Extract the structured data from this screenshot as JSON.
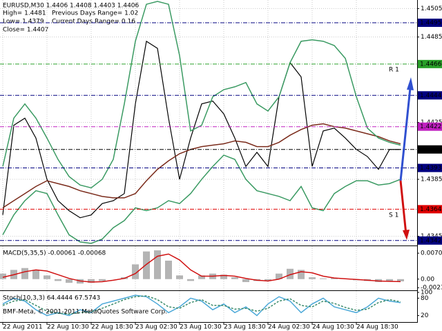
{
  "chart_data": [
    {
      "type": "line",
      "title": "EURUSD,M30  1.4406 1.4408 1.4403 1.4406",
      "annotations": [
        "High= 1.4481",
        "Previous Days Range= 1.02",
        "Low= 1.4379",
        "Current Days Range= 0.16",
        "Close= 1.4407",
        "R 1",
        "S 1"
      ],
      "categories": [
        "22 Aug 2011",
        null,
        null,
        null,
        "22 Aug 10:30",
        null,
        null,
        null,
        "22 Aug 18:30",
        null,
        null,
        null,
        "23 Aug 02:30",
        null,
        null,
        null,
        "23 Aug 10:30",
        null,
        null,
        null,
        "23 Aug 18:30",
        null,
        null,
        null,
        "24 Aug 02:30",
        null,
        null,
        null,
        "24 Aug 10:30",
        null,
        null,
        null,
        "24 Aug 18:30",
        null,
        null,
        null,
        null
      ],
      "ylim": [
        1.4339,
        1.4511
      ],
      "yticks": [
        1.4505,
        1.4485,
        1.4425,
        1.4385,
        1.4345
      ],
      "grid": true,
      "series": [
        {
          "color": "#000000",
          "values": [
            1.436,
            1.4423,
            1.4428,
            1.4414,
            1.4385,
            1.437,
            1.4363,
            1.4358,
            1.436,
            1.4368,
            1.437,
            1.4375,
            1.4438,
            1.4482,
            1.4477,
            1.4428,
            1.4385,
            1.4414,
            1.4438,
            1.444,
            1.4431,
            1.4414,
            1.4394,
            1.4404,
            1.4394,
            1.4443,
            1.4467,
            1.4457,
            1.4394,
            1.4419,
            1.4421,
            1.4414,
            1.4406,
            1.4401,
            1.4392,
            1.4406,
            1.4406
          ]
        },
        {
          "color": "#7a2a1a",
          "values": [
            1.4365,
            1.437,
            1.4375,
            1.438,
            1.4384,
            1.4382,
            1.438,
            1.4377,
            1.4375,
            1.4373,
            1.4372,
            1.4372,
            1.4375,
            1.4384,
            1.4392,
            1.4398,
            1.4403,
            1.4406,
            1.4408,
            1.4409,
            1.441,
            1.4412,
            1.4411,
            1.4408,
            1.4408,
            1.4411,
            1.4416,
            1.442,
            1.4423,
            1.4424,
            1.4422,
            1.4421,
            1.4419,
            1.4417,
            1.4415,
            1.4412,
            1.441
          ]
        },
        {
          "color": "#3a9a62",
          "values": [
            1.4394,
            1.4428,
            1.4438,
            1.4428,
            1.4414,
            1.4399,
            1.4387,
            1.4381,
            1.4379,
            1.4385,
            1.4399,
            1.4438,
            1.4482,
            1.4508,
            1.451,
            1.4508,
            1.4472,
            1.4419,
            1.4423,
            1.4443,
            1.4448,
            1.445,
            1.4453,
            1.4438,
            1.4433,
            1.4443,
            1.4467,
            1.4482,
            1.4483,
            1.4482,
            1.4479,
            1.447,
            1.4443,
            1.4421,
            1.4414,
            1.4411,
            1.4409
          ]
        },
        {
          "color": "#3a9a62",
          "values": [
            1.4346,
            1.436,
            1.437,
            1.4377,
            1.4375,
            1.436,
            1.4346,
            1.4341,
            1.434,
            1.4343,
            1.4351,
            1.4356,
            1.4365,
            1.4363,
            1.4365,
            1.437,
            1.4368,
            1.4375,
            1.4385,
            1.4394,
            1.4402,
            1.4399,
            1.4385,
            1.4377,
            1.4375,
            1.4373,
            1.437,
            1.438,
            1.4365,
            1.4363,
            1.4375,
            1.438,
            1.4384,
            1.4384,
            1.4381,
            1.4382,
            1.4385
          ]
        }
      ],
      "levels": [
        {
          "value": 1.4495,
          "color": "#000080"
        },
        {
          "value": 1.4466,
          "color": "#2aa02a"
        },
        {
          "value": 1.4444,
          "color": "#000080"
        },
        {
          "value": 1.4422,
          "color": "#c020c0"
        },
        {
          "value": 1.4406,
          "color": "#000000"
        },
        {
          "value": 1.4393,
          "color": "#000080"
        },
        {
          "value": 1.4364,
          "color": "#e00000"
        },
        {
          "value": 1.4342,
          "color": "#000080"
        }
      ]
    },
    {
      "type": "bar",
      "title": "MACD(5,35,5) -0.00061 -0.00068",
      "ylim": [
        -0.00266,
        0.00874
      ],
      "yticks": [
        0.00703,
        {
          "value": 0,
          "label": "0.00"
        },
        -0.00233
      ],
      "series": [
        {
          "style": "histogram",
          "color": "#b4b4b4",
          "values": [
            0.0015,
            0.0025,
            0.003,
            0.0025,
            0.001,
            -0.0005,
            -0.001,
            -0.0012,
            -0.001,
            -0.0005,
            0,
            0.0005,
            0.004,
            0.0075,
            0.0078,
            0.005,
            0.001,
            -0.0005,
            0.001,
            0.0015,
            0.0012,
            0.0005,
            -0.0008,
            -0.0005,
            -0.0005,
            0.0015,
            0.0028,
            0.0025,
            0.0005,
            0.0002,
            0.0003,
            0,
            -0.0003,
            -0.0005,
            -0.0008,
            -0.0006,
            -0.00061
          ]
        },
        {
          "style": "line",
          "color": "#d01010",
          "values": [
            0.0005,
            0.0012,
            0.002,
            0.0025,
            0.0022,
            0.0012,
            0.0002,
            -0.0005,
            -0.0008,
            -0.0007,
            -0.0003,
            0.0002,
            0.0015,
            0.004,
            0.0062,
            0.0068,
            0.0052,
            0.0025,
            0.0008,
            0.0008,
            0.001,
            0.0008,
            0.0002,
            -0.0003,
            -0.0005,
            0,
            0.0012,
            0.002,
            0.0017,
            0.0008,
            0.0003,
            0.0001,
            -0.0001,
            -0.0003,
            -0.0005,
            -0.0006,
            -0.00068
          ]
        }
      ]
    },
    {
      "type": "line",
      "title": "Stoch(10,3,3) 64.4444 67.5743",
      "ylim": [
        0,
        100
      ],
      "yticks": [
        100,
        80,
        20
      ],
      "series": [
        {
          "color": "#4aa8d8",
          "values": [
            60,
            80,
            70,
            40,
            20,
            30,
            20,
            40,
            30,
            60,
            70,
            80,
            90,
            85,
            60,
            30,
            50,
            80,
            70,
            40,
            60,
            30,
            50,
            20,
            60,
            85,
            70,
            30,
            60,
            80,
            50,
            40,
            30,
            50,
            80,
            70,
            64.4444
          ]
        },
        {
          "color": "#3a8a6a",
          "dash": true,
          "values": [
            55,
            70,
            75,
            55,
            35,
            28,
            25,
            30,
            33,
            45,
            60,
            75,
            85,
            88,
            75,
            50,
            45,
            65,
            75,
            55,
            55,
            42,
            45,
            35,
            45,
            70,
            78,
            55,
            50,
            70,
            62,
            48,
            38,
            42,
            65,
            75,
            67.5743
          ]
        }
      ]
    }
  ],
  "footer": "BMF-Meta, © 2001-2011 MetaQuotes Software Corp."
}
